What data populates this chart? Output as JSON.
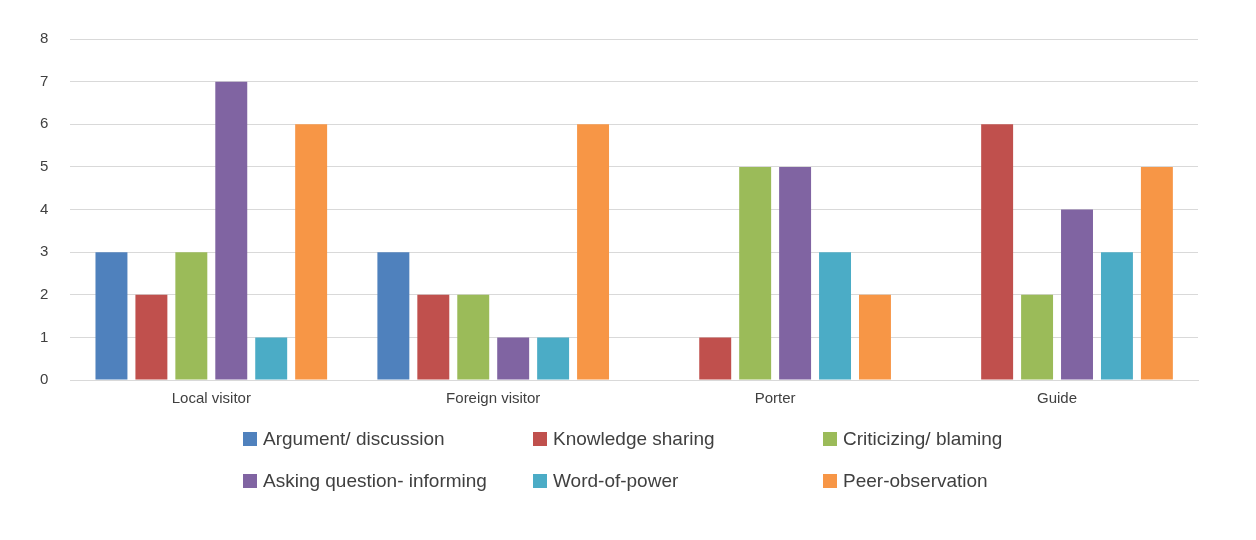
{
  "chart_data": {
    "type": "bar",
    "categories": [
      "Local visitor",
      "Foreign visitor",
      "Porter",
      "Guide"
    ],
    "series": [
      {
        "name": "Argument/ discussion",
        "color": "#4f81bd",
        "values": [
          3,
          3,
          0,
          0
        ]
      },
      {
        "name": "Knowledge sharing",
        "color": "#c0504d",
        "values": [
          2,
          2,
          1,
          6
        ]
      },
      {
        "name": "Criticizing/ blaming",
        "color": "#9bbb59",
        "values": [
          3,
          2,
          5,
          2
        ]
      },
      {
        "name": "Asking question- informing",
        "color": "#8064a2",
        "values": [
          7,
          1,
          5,
          4
        ]
      },
      {
        "name": "Word-of-power",
        "color": "#4bacc6",
        "values": [
          1,
          1,
          3,
          3
        ]
      },
      {
        "name": "Peer-observation",
        "color": "#f79646",
        "values": [
          6,
          6,
          2,
          5
        ]
      }
    ],
    "ylim": [
      0,
      8
    ],
    "yticks": [
      0,
      1,
      2,
      3,
      4,
      5,
      6,
      7,
      8
    ],
    "grid": "y",
    "legend": "bottom"
  }
}
